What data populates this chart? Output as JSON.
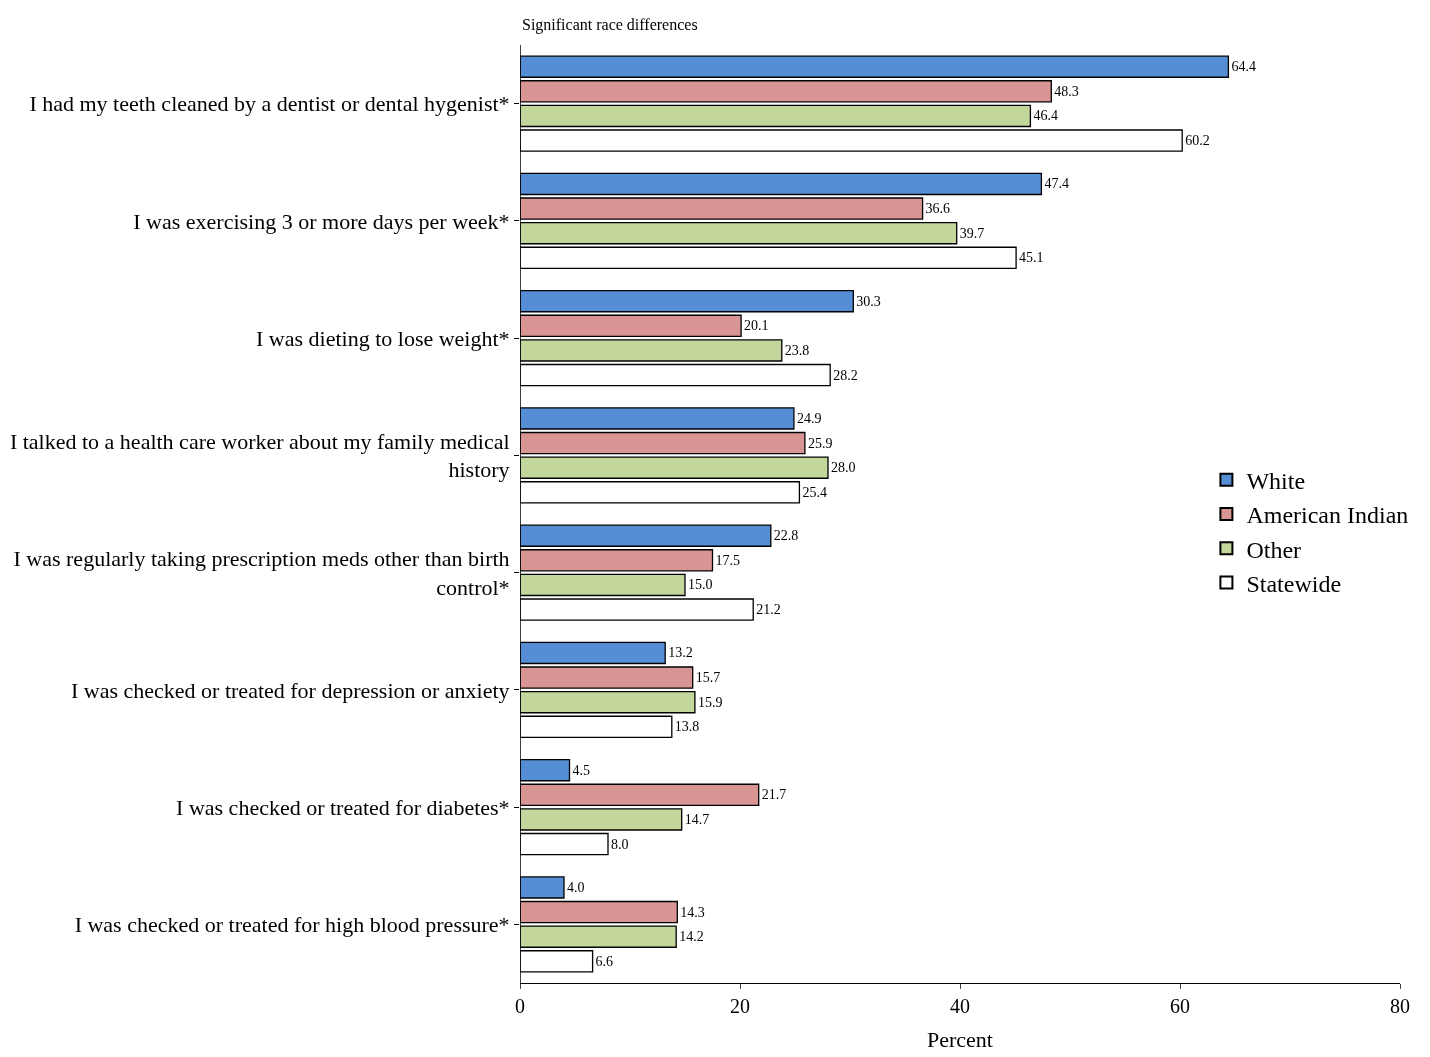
{
  "chart_data": {
    "type": "bar",
    "orientation": "horizontal",
    "xlabel": "Percent",
    "annotations": [
      "Significant race differences"
    ],
    "categories": [
      "I had my teeth cleaned by a dentist or dental hygenist*",
      "I was exercising 3 or more days per week*",
      "I was dieting to lose weight*",
      "I talked to a health care worker about my family medical history",
      "I was regularly taking prescription meds other than birth control*",
      "I was checked or treated for depression or anxiety",
      "I was checked or treated for diabetes*",
      "I was checked or treated for high blood pressure*"
    ],
    "series": [
      {
        "name": "White",
        "color": "#558ed5",
        "values": [
          64.4,
          47.4,
          30.3,
          24.9,
          22.8,
          13.2,
          4.5,
          4.0
        ]
      },
      {
        "name": "American Indian",
        "color": "#d99594",
        "values": [
          48.3,
          36.6,
          20.1,
          25.9,
          17.5,
          15.7,
          21.7,
          14.3
        ]
      },
      {
        "name": "Other",
        "color": "#c3d69b",
        "values": [
          46.4,
          39.7,
          23.8,
          28.0,
          15.0,
          15.9,
          14.7,
          14.2
        ]
      },
      {
        "name": "Statewide",
        "color": "#ffffff",
        "values": [
          60.2,
          45.1,
          28.2,
          25.4,
          21.2,
          13.8,
          8.0,
          6.6
        ]
      }
    ],
    "value_labels": [
      [
        "64.4",
        "47.4",
        "30.3",
        "24.9",
        "22.8",
        "13.2",
        "4.5",
        "4.0"
      ],
      [
        "48.3",
        "36.6",
        "20.1",
        "25.9",
        "17.5",
        "15.7",
        "21.7",
        "14.3"
      ],
      [
        "46.4",
        "39.7",
        "23.8",
        "28.0",
        "15.0",
        "15.9",
        "14.7",
        "14.2"
      ],
      [
        "60.2",
        "45.1",
        "28.2",
        "25.4",
        "21.2",
        "13.8",
        "8.0",
        "6.6"
      ]
    ],
    "xlim": [
      0,
      80
    ],
    "xticks": [
      0,
      20,
      40,
      60,
      80
    ],
    "legend": "right"
  }
}
